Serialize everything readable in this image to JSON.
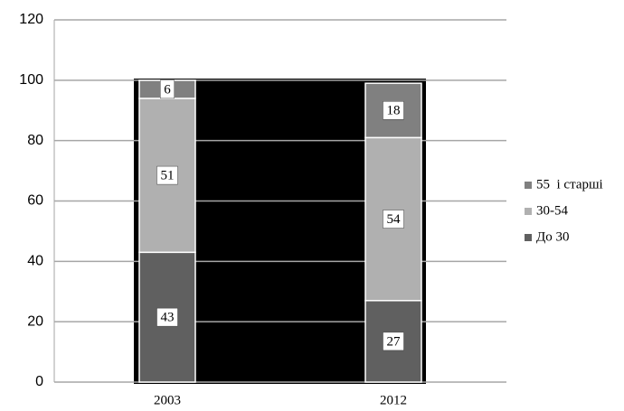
{
  "chart_data": {
    "type": "stacked_bar",
    "categories": [
      "2003",
      "2012"
    ],
    "series": [
      {
        "name": "До 30",
        "color": "#606060",
        "values": [
          43,
          27
        ]
      },
      {
        "name": "30-54",
        "color": "#b0b0b0",
        "values": [
          51,
          54
        ]
      },
      {
        "name": "55  і старші",
        "color": "#808080",
        "values": [
          6,
          18
        ]
      }
    ],
    "ylim": [
      0,
      120
    ],
    "yticks": [
      0,
      20,
      40,
      60,
      80,
      100,
      120
    ],
    "grid": true,
    "legend": "right"
  }
}
